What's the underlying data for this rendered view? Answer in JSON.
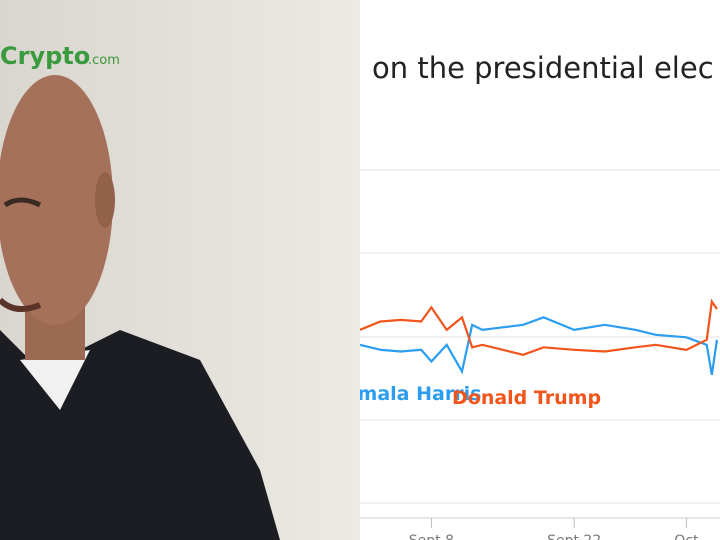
{
  "logo": {
    "name": "Crypto",
    "suffix": ".com"
  },
  "chart_data": {
    "type": "line",
    "title": "on the presidential elec",
    "x": [
      1,
      3,
      5,
      7,
      8,
      9.5,
      11,
      12,
      13,
      15,
      17,
      19,
      22,
      25,
      28,
      30,
      33,
      35,
      35.5,
      36
    ],
    "xlim": [
      1,
      36.3
    ],
    "xticks": [
      {
        "value": 8,
        "label": "Sept 8"
      },
      {
        "value": 22,
        "label": "Sept 22"
      },
      {
        "value": 33,
        "label": "Oct"
      }
    ],
    "ylim": [
      30,
      70
    ],
    "series": [
      {
        "name": "Kamala Harris",
        "color": "#2b9df0",
        "values": [
          49.0,
          48.4,
          48.2,
          48.4,
          47.0,
          49.0,
          45.8,
          51.4,
          50.8,
          51.1,
          51.4,
          52.3,
          50.8,
          51.4,
          50.8,
          50.2,
          49.9,
          49.0,
          45.4,
          49.6
        ]
      },
      {
        "name": "Donald Trump",
        "color": "#f2541b",
        "values": [
          50.8,
          51.8,
          52.0,
          51.8,
          53.5,
          50.8,
          52.3,
          48.7,
          49.0,
          48.4,
          47.8,
          48.7,
          48.4,
          48.2,
          48.7,
          49.0,
          48.4,
          49.6,
          54.2,
          53.3
        ]
      }
    ]
  }
}
